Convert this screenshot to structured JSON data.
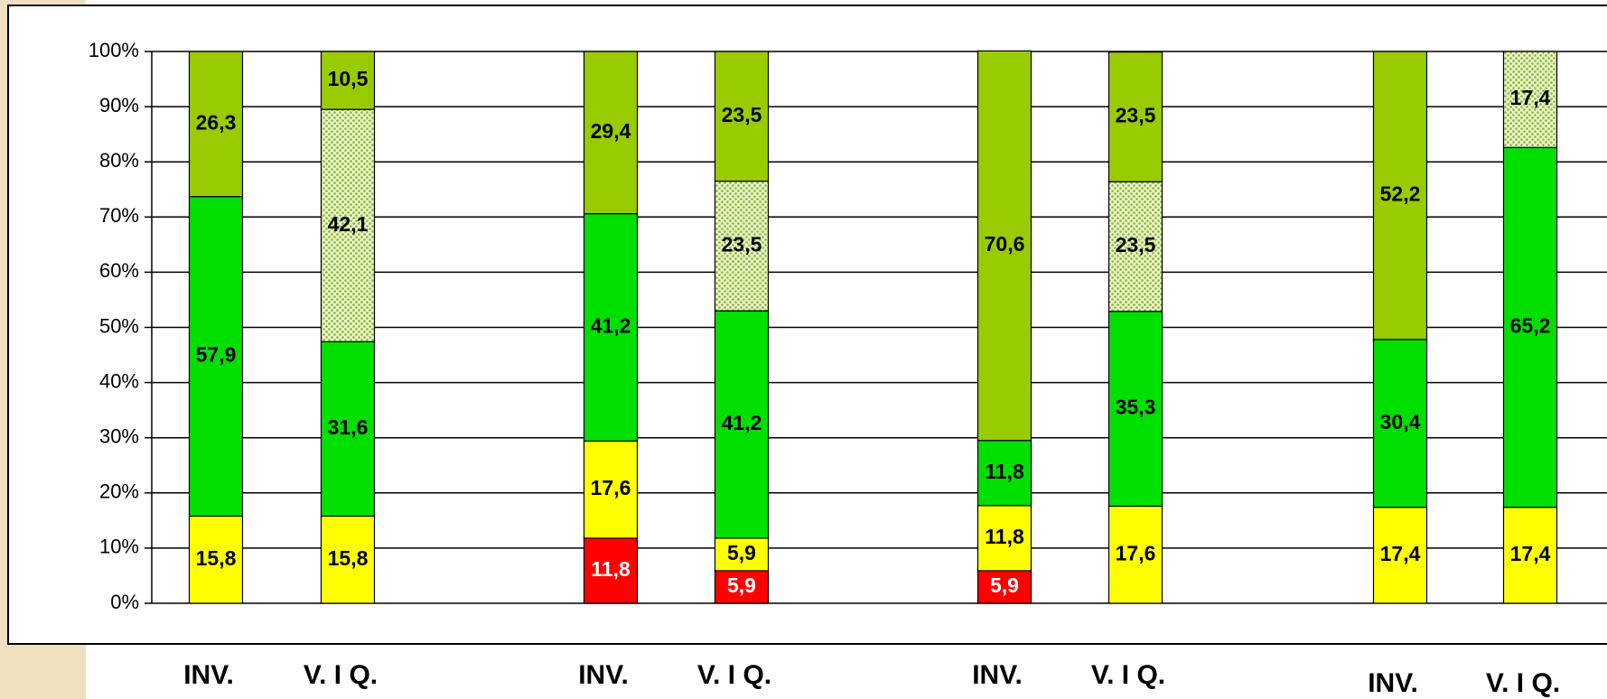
{
  "chart_data": {
    "type": "stacked-bar",
    "categories": [
      "INV.",
      "V. I Q.",
      "INV.",
      "V. I Q.",
      "INV.",
      "V. I Q.",
      "INV.",
      "V. I Q."
    ],
    "series": [
      {
        "color": "#ff0000",
        "values": [
          null,
          null,
          11.8,
          5.9,
          5.9,
          null,
          null,
          null
        ],
        "value_labels": [
          null,
          null,
          "11,8",
          "5,9",
          "5,9",
          null,
          null,
          null
        ]
      },
      {
        "color": "#ffff00",
        "values": [
          15.8,
          15.8,
          17.6,
          5.9,
          11.8,
          17.6,
          17.4,
          17.4
        ],
        "value_labels": [
          "15,8",
          "15,8",
          "17,6",
          "5,9",
          "11,8",
          "17,6",
          "17,4",
          "17,4"
        ]
      },
      {
        "color": "#00e000",
        "values": [
          57.9,
          31.6,
          41.2,
          41.2,
          11.8,
          35.3,
          30.4,
          65.2
        ],
        "value_labels": [
          "57,9",
          "31,6",
          "41,2",
          "41,2",
          "11,8",
          "35,3",
          "30,4",
          "65,2"
        ]
      },
      {
        "color": "#a8cc44",
        "pattern": "dots",
        "values": [
          null,
          42.1,
          null,
          23.5,
          null,
          23.5,
          null,
          17.4
        ],
        "value_labels": [
          null,
          "42,1",
          null,
          "23,5",
          null,
          "23,5",
          null,
          "17,4"
        ]
      },
      {
        "color": "#99cc00",
        "values": [
          26.3,
          10.5,
          29.4,
          23.5,
          70.6,
          23.5,
          52.2,
          null
        ],
        "value_labels": [
          "26,3",
          "10,5",
          "29,4",
          "23,5",
          "70,6",
          "23,5",
          "52,2",
          null
        ]
      }
    ],
    "ylim": [
      0,
      100
    ],
    "yticks": [
      {
        "value": 0,
        "label": "0%"
      },
      {
        "value": 10,
        "label": "10%"
      },
      {
        "value": 20,
        "label": "20%"
      },
      {
        "value": 30,
        "label": "30%"
      },
      {
        "value": 40,
        "label": "40%"
      },
      {
        "value": 50,
        "label": "50%"
      },
      {
        "value": 60,
        "label": "60%"
      },
      {
        "value": 70,
        "label": "70%"
      },
      {
        "value": 80,
        "label": "80%"
      },
      {
        "value": 90,
        "label": "90%"
      },
      {
        "value": 100,
        "label": "100%"
      }
    ],
    "grid": true
  }
}
